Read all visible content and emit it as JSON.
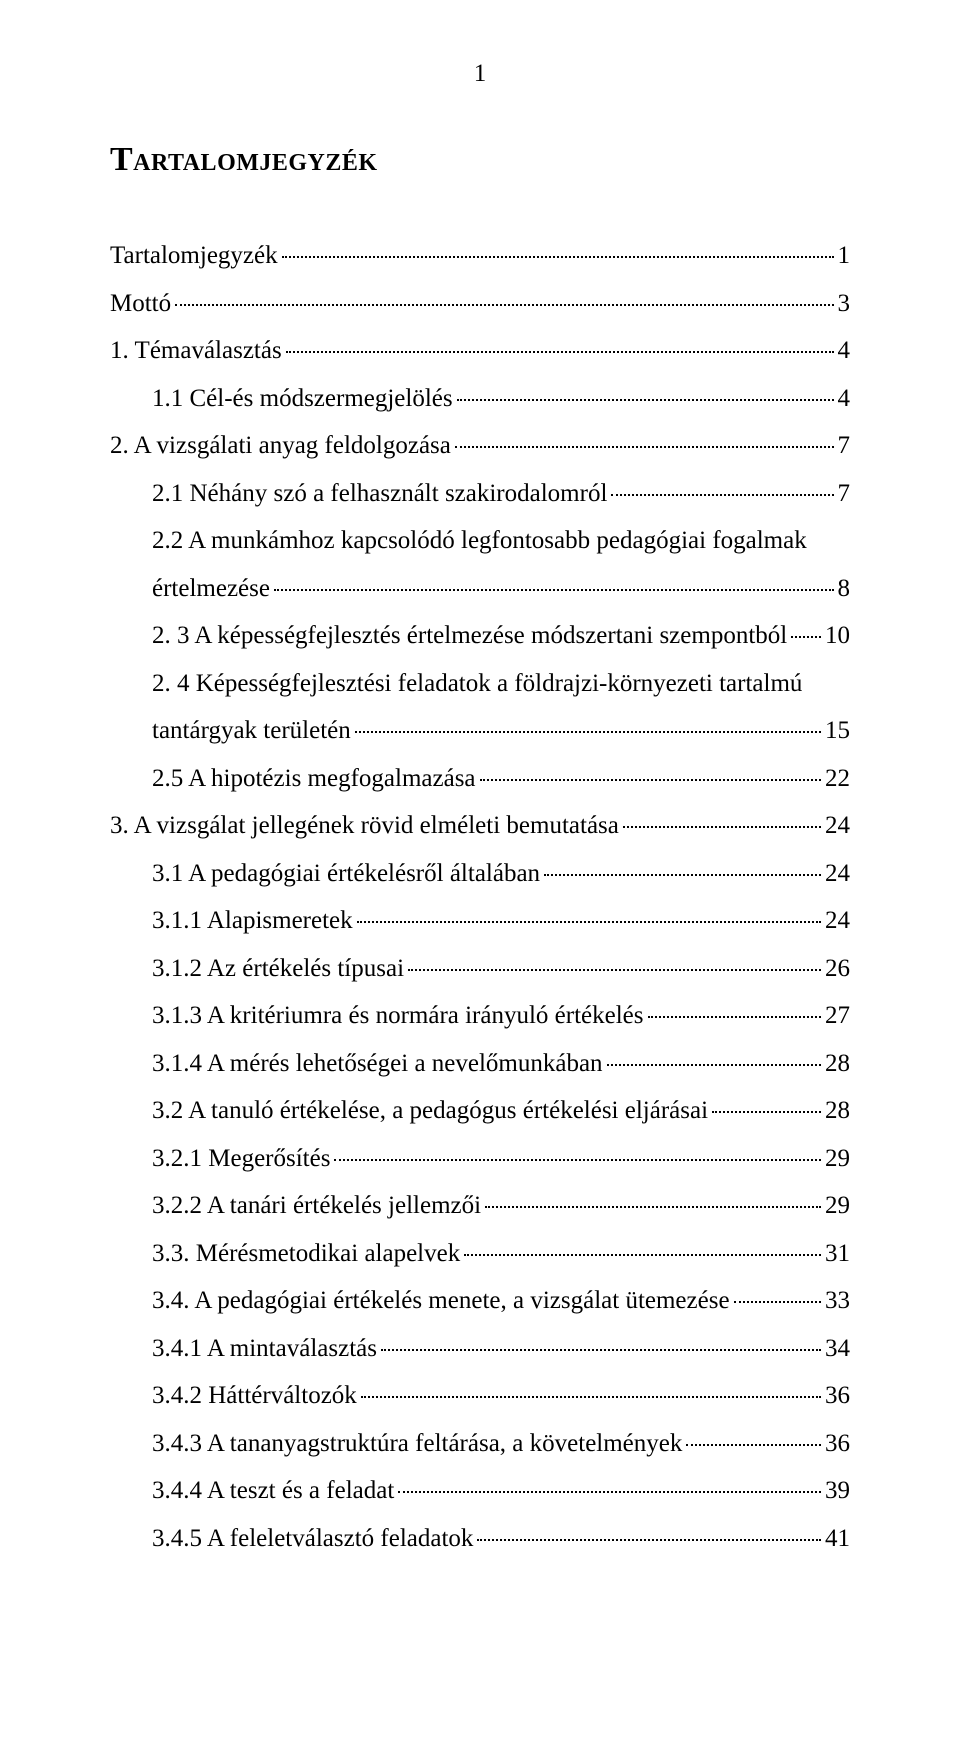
{
  "page_number": "1",
  "title": "Tartalomjegyzék",
  "entries": [
    {
      "level": 0,
      "label": "Tartalomjegyzék",
      "page": "1"
    },
    {
      "level": 0,
      "label": "Mottó",
      "page": "3"
    },
    {
      "level": 0,
      "label": "1. Témaválasztás",
      "page": "4"
    },
    {
      "level": 1,
      "label": "1.1 Cél-és módszermegjelölés",
      "page": "4"
    },
    {
      "level": 0,
      "label": "2. A vizsgálati anyag feldolgozása",
      "page": "7"
    },
    {
      "level": 1,
      "label": "2.1 Néhány szó a felhasznált szakirodalomról",
      "page": "7"
    },
    {
      "level": 1,
      "label_pre": "2.2 A munkámhoz kapcsolódó legfontosabb pedagógiai fogalmak",
      "label": "értelmezése",
      "page": "8",
      "multiline": true
    },
    {
      "level": 1,
      "label": "2. 3 A képességfejlesztés értelmezése módszertani szempontból",
      "page": "10"
    },
    {
      "level": 1,
      "label_pre": "2. 4 Képességfejlesztési feladatok a földrajzi-környezeti tartalmú",
      "label": "tantárgyak területén",
      "page": "15",
      "multiline": true
    },
    {
      "level": 1,
      "label": "2.5 A hipotézis megfogalmazása",
      "page": "22"
    },
    {
      "level": 0,
      "label": "3. A vizsgálat jellegének rövid elméleti bemutatása",
      "page": "24"
    },
    {
      "level": 1,
      "label": "3.1 A pedagógiai értékelésről általában",
      "page": "24"
    },
    {
      "level": 1,
      "label": "3.1.1 Alapismeretek",
      "page": "24"
    },
    {
      "level": 1,
      "label": "3.1.2 Az értékelés típusai",
      "page": "26"
    },
    {
      "level": 1,
      "label": "3.1.3 A kritériumra és normára irányuló értékelés",
      "page": "27"
    },
    {
      "level": 1,
      "label": "3.1.4 A mérés lehetőségei a nevelőmunkában",
      "page": "28"
    },
    {
      "level": 1,
      "label": "3.2 A tanuló értékelése, a pedagógus értékelési eljárásai",
      "page": "28"
    },
    {
      "level": 1,
      "label": "3.2.1 Megerősítés",
      "page": "29"
    },
    {
      "level": 1,
      "label": "3.2.2 A tanári értékelés jellemzői",
      "page": "29"
    },
    {
      "level": 1,
      "label": "3.3. Mérésmetodikai alapelvek",
      "page": "31"
    },
    {
      "level": 1,
      "label": "3.4. A pedagógiai értékelés menete, a vizsgálat ütemezése",
      "page": "33"
    },
    {
      "level": 1,
      "label": "3.4.1 A mintaválasztás",
      "page": "34"
    },
    {
      "level": 1,
      "label": "3.4.2 Háttérváltozók",
      "page": "36"
    },
    {
      "level": 1,
      "label": "3.4.3 A tananyagstruktúra feltárása, a követelmények",
      "page": "36"
    },
    {
      "level": 1,
      "label": "3.4.4 A teszt és a feladat",
      "page": "39"
    },
    {
      "level": 1,
      "label": "3.4.5 A feleletválasztó feladatok",
      "page": "41"
    }
  ]
}
